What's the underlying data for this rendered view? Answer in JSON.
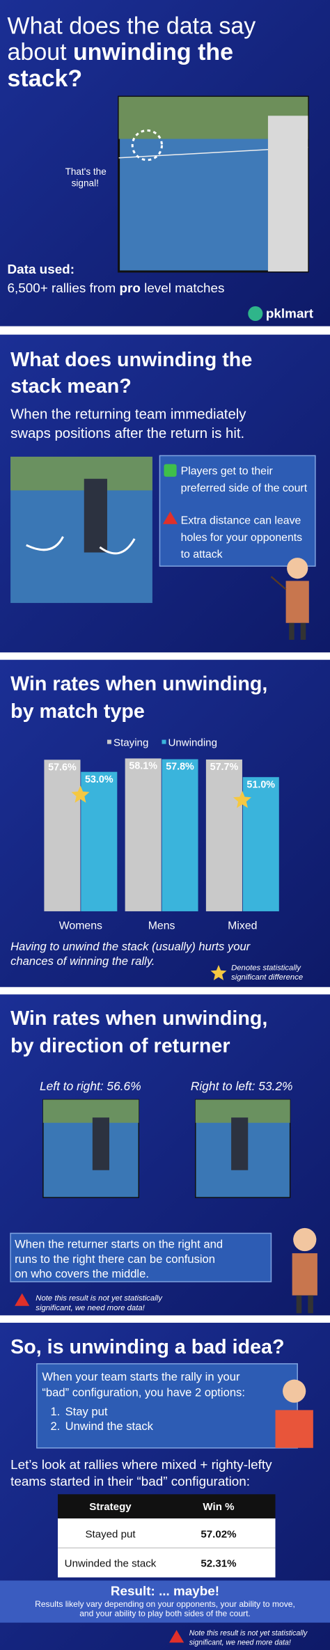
{
  "header": {
    "title_line1": "What does the data say",
    "title_line2_plain": "about ",
    "title_line2_bold": "unwinding the",
    "title_line3_bold": "stack?",
    "signal_caption": [
      "That's the",
      "signal!"
    ],
    "data_used_label": "Data used:",
    "data_used_text_start": "6,500+ rallies from ",
    "data_used_text_bold": "pro",
    "data_used_text_end": " level matches",
    "logo": "pklmart"
  },
  "meaning": {
    "title": [
      "What does unwinding the",
      "stack mean?"
    ],
    "subtitle": [
      "When the returning team immediately",
      "swaps positions after the return is hit."
    ],
    "pro": [
      "Players get to their",
      "preferred side of the court"
    ],
    "con": [
      "Extra distance can leave",
      "holes for your opponents",
      "to attack"
    ]
  },
  "chart_data": {
    "type": "bar",
    "title": [
      "Win rates when unwinding,",
      "by match type"
    ],
    "categories": [
      "Womens",
      "Mens",
      "Mixed"
    ],
    "series": [
      {
        "name": "Staying",
        "color": "#c9c9c9",
        "values": [
          57.6,
          58.1,
          57.7
        ],
        "value_labels": [
          "57.6%",
          "58.1%",
          "57.7%"
        ]
      },
      {
        "name": "Unwinding",
        "color": "#3ab4dc",
        "values": [
          53.0,
          57.8,
          51.0
        ],
        "value_labels": [
          "53.0%",
          "57.8%",
          "51.0%"
        ]
      }
    ],
    "significant": [
      true,
      false,
      true
    ],
    "ylim": [
      0,
      60
    ],
    "footnote": [
      "Having to unwind the stack (usually) hurts your",
      "chances of winning the rally."
    ],
    "star_note": [
      "Denotes statistically",
      "significant difference"
    ]
  },
  "direction": {
    "title": [
      "Win rates when unwinding,",
      "by direction of returner"
    ],
    "left_to_right": "Left to right: 56.6%",
    "right_to_left": "Right to left: 53.2%",
    "note": [
      "When the returner starts on the right and",
      "runs to the right there can be confusion",
      "on who covers the middle."
    ],
    "warning": [
      "Note this result is not yet statistically",
      "significant, we need more data!"
    ]
  },
  "conclusion": {
    "title": "So, is unwinding a bad idea?",
    "box_text": [
      "When your team starts the rally in your",
      "“bad” configuration, you have 2 options:"
    ],
    "options": [
      {
        "number": "1.",
        "text": "Stay put"
      },
      {
        "number": "2.",
        "text": "Unwind the stack"
      }
    ],
    "intro": [
      "Let’s look at rallies where mixed + righty-lefty",
      "teams started in their “bad” configuration:"
    ],
    "table": {
      "header": [
        "Strategy",
        "Win %"
      ],
      "rows": [
        [
          "Stayed put",
          "57.02%"
        ],
        [
          "Unwinded the stack",
          "52.31%"
        ]
      ]
    },
    "result_title": "Result: ... maybe!",
    "result_text": [
      "Results likely vary depending on your opponents, your ability to move,",
      "and your ability to play both sides of the court."
    ],
    "warning": [
      "Note this result is not yet statistically",
      "significant, we need more data!"
    ]
  }
}
